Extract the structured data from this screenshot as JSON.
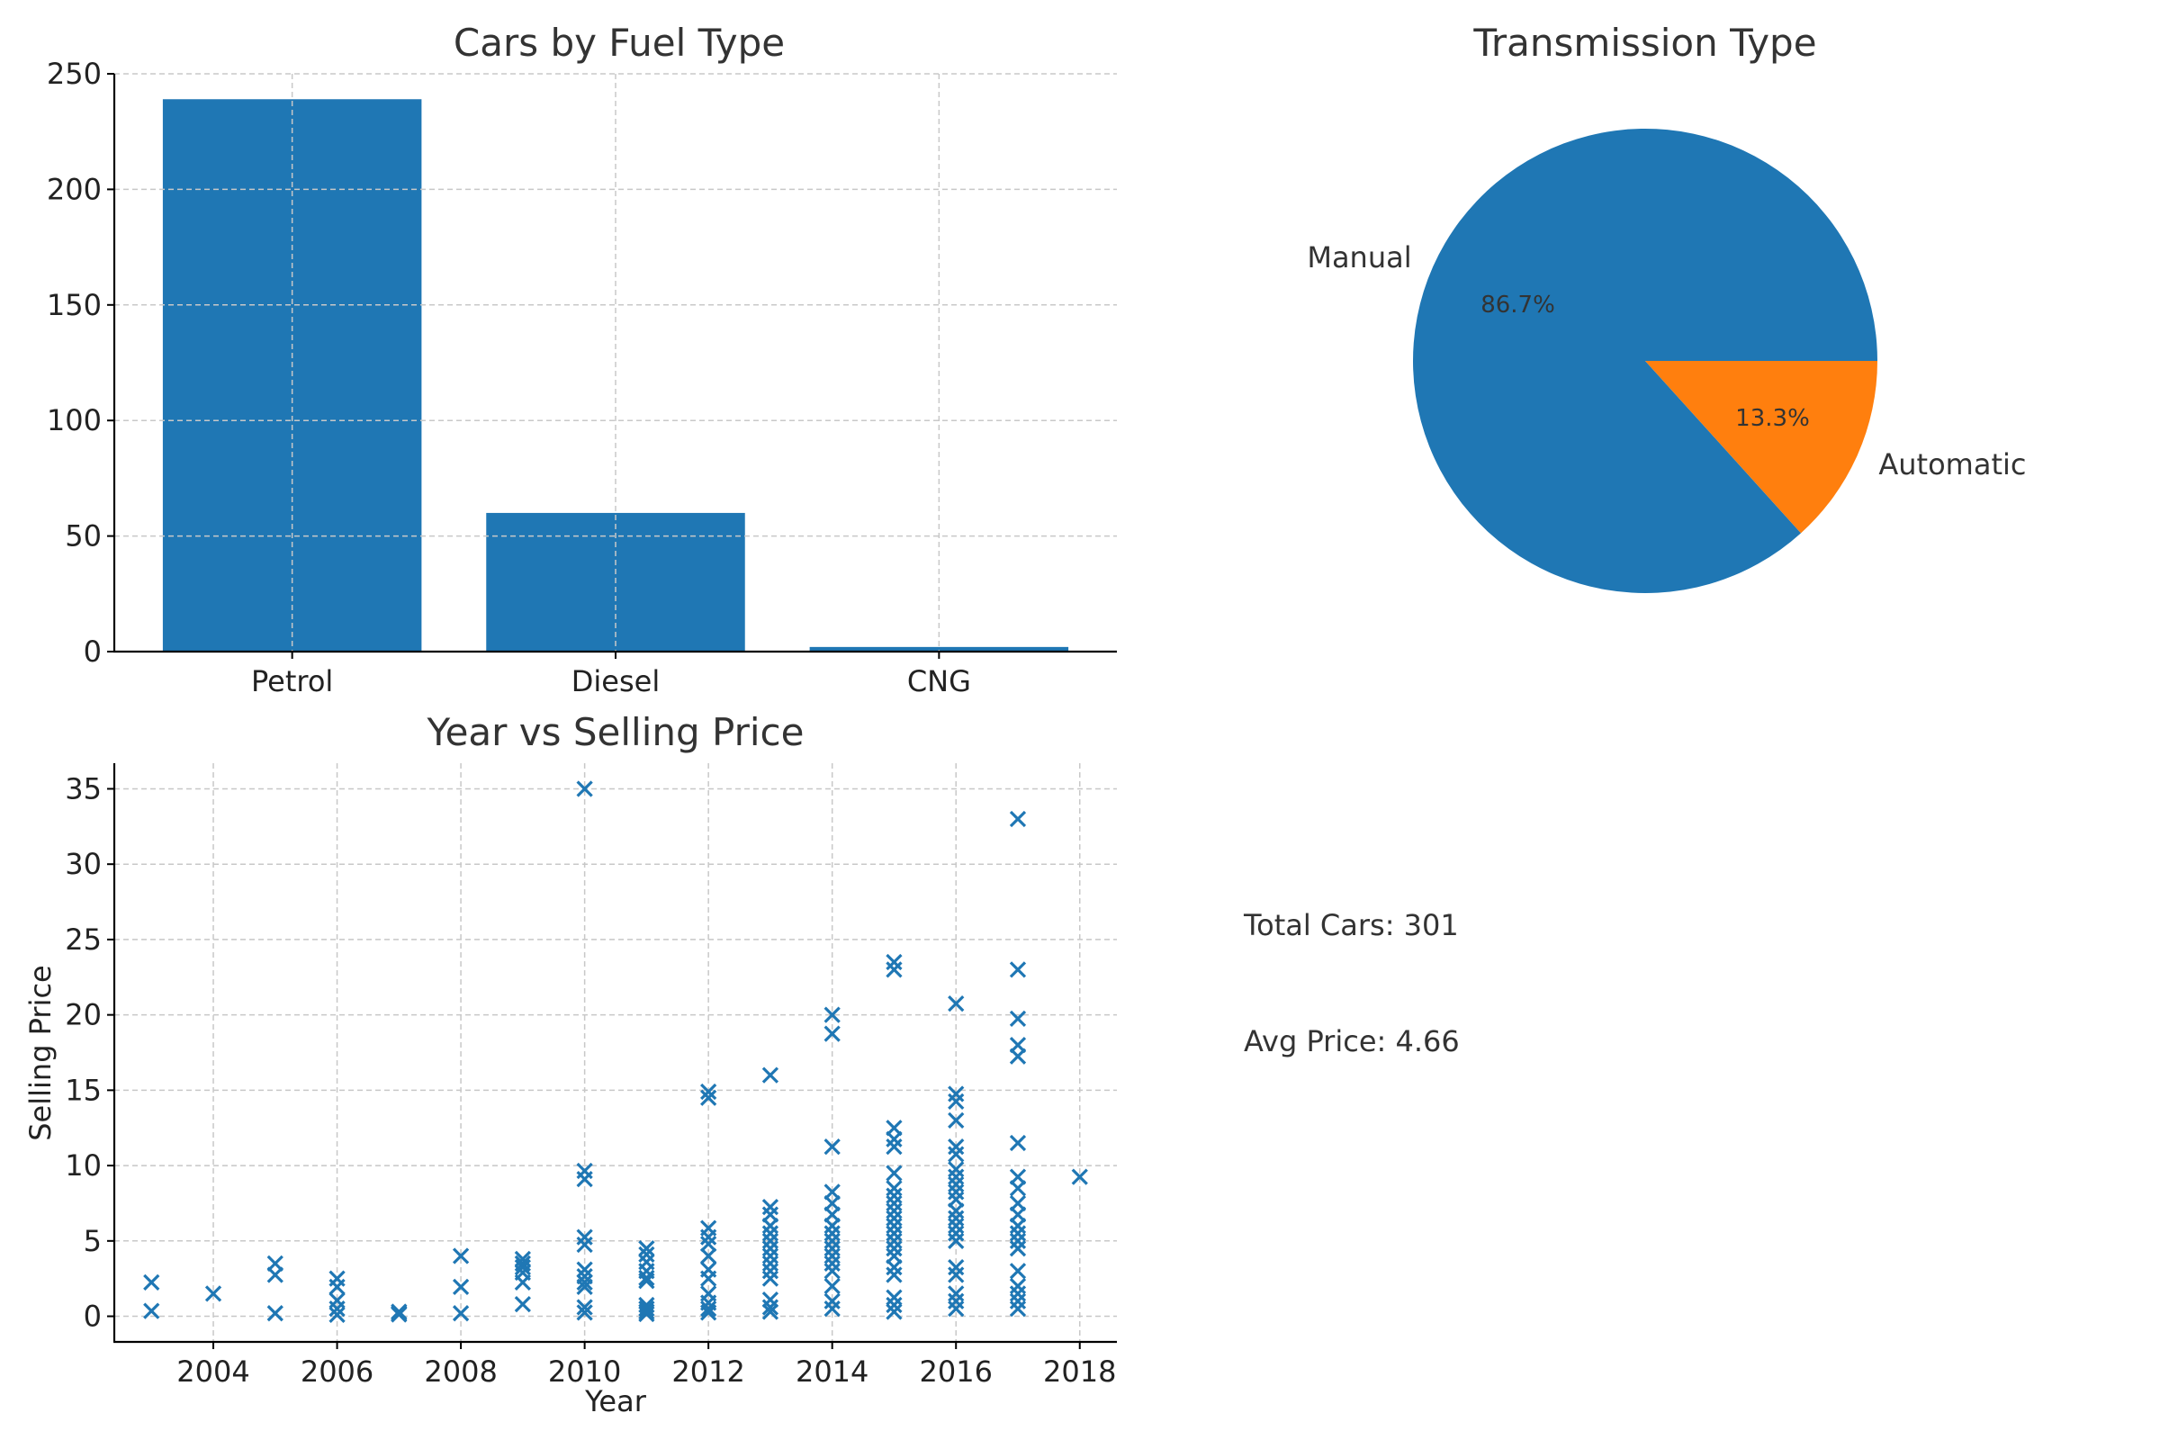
{
  "chart_data": [
    {
      "type": "bar",
      "title": "Cars by Fuel Type",
      "categories": [
        "Petrol",
        "Diesel",
        "CNG"
      ],
      "values": [
        239,
        60,
        2
      ],
      "ylim": [
        0,
        250
      ],
      "yticks": [
        0,
        50,
        100,
        150,
        200,
        250
      ],
      "grid": true,
      "color": "#1f77b4"
    },
    {
      "type": "pie",
      "title": "Transmission Type",
      "labels": [
        "Manual",
        "Automatic"
      ],
      "values": [
        86.7,
        13.3
      ],
      "pct_labels": [
        "86.7%",
        "13.3%"
      ],
      "colors": [
        "#1f77b4",
        "#ff7f0e"
      ]
    },
    {
      "type": "scatter",
      "title": "Year vs Selling Price",
      "xlabel": "Year",
      "ylabel": "Selling Price",
      "xlim": [
        2002.4,
        2018.6
      ],
      "ylim": [
        -1.7,
        36.7
      ],
      "xticks": [
        2004,
        2006,
        2008,
        2010,
        2012,
        2014,
        2016,
        2018
      ],
      "yticks": [
        0,
        5,
        10,
        15,
        20,
        25,
        30,
        35
      ],
      "marker": "x",
      "color": "#1f77b4",
      "grid": true,
      "points": [
        {
          "x": 2003,
          "y": 2.25
        },
        {
          "x": 2003,
          "y": 0.35
        },
        {
          "x": 2004,
          "y": 1.5
        },
        {
          "x": 2005,
          "y": 3.5
        },
        {
          "x": 2005,
          "y": 2.75
        },
        {
          "x": 2005,
          "y": 0.2
        },
        {
          "x": 2006,
          "y": 2.5
        },
        {
          "x": 2006,
          "y": 1.95
        },
        {
          "x": 2006,
          "y": 1.05
        },
        {
          "x": 2006,
          "y": 0.5
        },
        {
          "x": 2006,
          "y": 0.1
        },
        {
          "x": 2007,
          "y": 0.3
        },
        {
          "x": 2007,
          "y": 0.2
        },
        {
          "x": 2007,
          "y": 0.12
        },
        {
          "x": 2008,
          "y": 4.0
        },
        {
          "x": 2008,
          "y": 1.95
        },
        {
          "x": 2008,
          "y": 0.2
        },
        {
          "x": 2009,
          "y": 3.8
        },
        {
          "x": 2009,
          "y": 3.5
        },
        {
          "x": 2009,
          "y": 3.25
        },
        {
          "x": 2009,
          "y": 2.9
        },
        {
          "x": 2009,
          "y": 2.25
        },
        {
          "x": 2009,
          "y": 0.8
        },
        {
          "x": 2010,
          "y": 35.0
        },
        {
          "x": 2010,
          "y": 9.65
        },
        {
          "x": 2010,
          "y": 9.1
        },
        {
          "x": 2010,
          "y": 5.25
        },
        {
          "x": 2010,
          "y": 4.75
        },
        {
          "x": 2010,
          "y": 3.1
        },
        {
          "x": 2010,
          "y": 2.65
        },
        {
          "x": 2010,
          "y": 2.25
        },
        {
          "x": 2010,
          "y": 1.95
        },
        {
          "x": 2010,
          "y": 0.6
        },
        {
          "x": 2010,
          "y": 0.25
        },
        {
          "x": 2011,
          "y": 4.5
        },
        {
          "x": 2011,
          "y": 4.1
        },
        {
          "x": 2011,
          "y": 3.6
        },
        {
          "x": 2011,
          "y": 3.0
        },
        {
          "x": 2011,
          "y": 2.55
        },
        {
          "x": 2011,
          "y": 2.35
        },
        {
          "x": 2011,
          "y": 0.75
        },
        {
          "x": 2011,
          "y": 0.5
        },
        {
          "x": 2011,
          "y": 0.3
        },
        {
          "x": 2011,
          "y": 0.15
        },
        {
          "x": 2012,
          "y": 14.9
        },
        {
          "x": 2012,
          "y": 14.5
        },
        {
          "x": 2012,
          "y": 5.85
        },
        {
          "x": 2012,
          "y": 5.25
        },
        {
          "x": 2012,
          "y": 4.8
        },
        {
          "x": 2012,
          "y": 4.0
        },
        {
          "x": 2012,
          "y": 3.1
        },
        {
          "x": 2012,
          "y": 2.5
        },
        {
          "x": 2012,
          "y": 1.5
        },
        {
          "x": 2012,
          "y": 0.9
        },
        {
          "x": 2012,
          "y": 0.5
        },
        {
          "x": 2012,
          "y": 0.25
        },
        {
          "x": 2013,
          "y": 16.0
        },
        {
          "x": 2013,
          "y": 7.25
        },
        {
          "x": 2013,
          "y": 6.75
        },
        {
          "x": 2013,
          "y": 6.0
        },
        {
          "x": 2013,
          "y": 5.5
        },
        {
          "x": 2013,
          "y": 5.0
        },
        {
          "x": 2013,
          "y": 4.5
        },
        {
          "x": 2013,
          "y": 4.0
        },
        {
          "x": 2013,
          "y": 3.5
        },
        {
          "x": 2013,
          "y": 3.0
        },
        {
          "x": 2013,
          "y": 2.5
        },
        {
          "x": 2013,
          "y": 1.1
        },
        {
          "x": 2013,
          "y": 0.6
        },
        {
          "x": 2013,
          "y": 0.3
        },
        {
          "x": 2014,
          "y": 20.0
        },
        {
          "x": 2014,
          "y": 18.75
        },
        {
          "x": 2014,
          "y": 11.25
        },
        {
          "x": 2014,
          "y": 8.25
        },
        {
          "x": 2014,
          "y": 7.5
        },
        {
          "x": 2014,
          "y": 6.75
        },
        {
          "x": 2014,
          "y": 6.0
        },
        {
          "x": 2014,
          "y": 5.5
        },
        {
          "x": 2014,
          "y": 5.0
        },
        {
          "x": 2014,
          "y": 4.5
        },
        {
          "x": 2014,
          "y": 4.0
        },
        {
          "x": 2014,
          "y": 3.5
        },
        {
          "x": 2014,
          "y": 3.0
        },
        {
          "x": 2014,
          "y": 2.0
        },
        {
          "x": 2014,
          "y": 1.0
        },
        {
          "x": 2014,
          "y": 0.5
        },
        {
          "x": 2015,
          "y": 23.5
        },
        {
          "x": 2015,
          "y": 23.0
        },
        {
          "x": 2015,
          "y": 12.5
        },
        {
          "x": 2015,
          "y": 11.75
        },
        {
          "x": 2015,
          "y": 11.25
        },
        {
          "x": 2015,
          "y": 9.5
        },
        {
          "x": 2015,
          "y": 8.5
        },
        {
          "x": 2015,
          "y": 8.0
        },
        {
          "x": 2015,
          "y": 7.5
        },
        {
          "x": 2015,
          "y": 7.0
        },
        {
          "x": 2015,
          "y": 6.5
        },
        {
          "x": 2015,
          "y": 6.0
        },
        {
          "x": 2015,
          "y": 5.5
        },
        {
          "x": 2015,
          "y": 5.0
        },
        {
          "x": 2015,
          "y": 4.5
        },
        {
          "x": 2015,
          "y": 4.0
        },
        {
          "x": 2015,
          "y": 3.25
        },
        {
          "x": 2015,
          "y": 2.75
        },
        {
          "x": 2015,
          "y": 1.25
        },
        {
          "x": 2015,
          "y": 0.75
        },
        {
          "x": 2015,
          "y": 0.3
        },
        {
          "x": 2016,
          "y": 20.75
        },
        {
          "x": 2016,
          "y": 14.75
        },
        {
          "x": 2016,
          "y": 14.25
        },
        {
          "x": 2016,
          "y": 13.0
        },
        {
          "x": 2016,
          "y": 11.25
        },
        {
          "x": 2016,
          "y": 10.75
        },
        {
          "x": 2016,
          "y": 9.75
        },
        {
          "x": 2016,
          "y": 9.25
        },
        {
          "x": 2016,
          "y": 8.75
        },
        {
          "x": 2016,
          "y": 8.25
        },
        {
          "x": 2016,
          "y": 7.75
        },
        {
          "x": 2016,
          "y": 7.0
        },
        {
          "x": 2016,
          "y": 6.5
        },
        {
          "x": 2016,
          "y": 6.0
        },
        {
          "x": 2016,
          "y": 5.5
        },
        {
          "x": 2016,
          "y": 5.0
        },
        {
          "x": 2016,
          "y": 3.25
        },
        {
          "x": 2016,
          "y": 2.75
        },
        {
          "x": 2016,
          "y": 1.5
        },
        {
          "x": 2016,
          "y": 1.0
        },
        {
          "x": 2016,
          "y": 0.5
        },
        {
          "x": 2017,
          "y": 33.0
        },
        {
          "x": 2017,
          "y": 23.0
        },
        {
          "x": 2017,
          "y": 19.75
        },
        {
          "x": 2017,
          "y": 18.0
        },
        {
          "x": 2017,
          "y": 17.25
        },
        {
          "x": 2017,
          "y": 11.5
        },
        {
          "x": 2017,
          "y": 9.25
        },
        {
          "x": 2017,
          "y": 8.5
        },
        {
          "x": 2017,
          "y": 7.5
        },
        {
          "x": 2017,
          "y": 6.75
        },
        {
          "x": 2017,
          "y": 6.0
        },
        {
          "x": 2017,
          "y": 5.5
        },
        {
          "x": 2017,
          "y": 5.0
        },
        {
          "x": 2017,
          "y": 4.5
        },
        {
          "x": 2017,
          "y": 3.0
        },
        {
          "x": 2017,
          "y": 2.0
        },
        {
          "x": 2017,
          "y": 1.5
        },
        {
          "x": 2017,
          "y": 1.0
        },
        {
          "x": 2017,
          "y": 0.5
        },
        {
          "x": 2018,
          "y": 9.25
        }
      ]
    }
  ],
  "stats": {
    "total_cars": "Total Cars: 301",
    "avg_price": "Avg Price: 4.66"
  }
}
